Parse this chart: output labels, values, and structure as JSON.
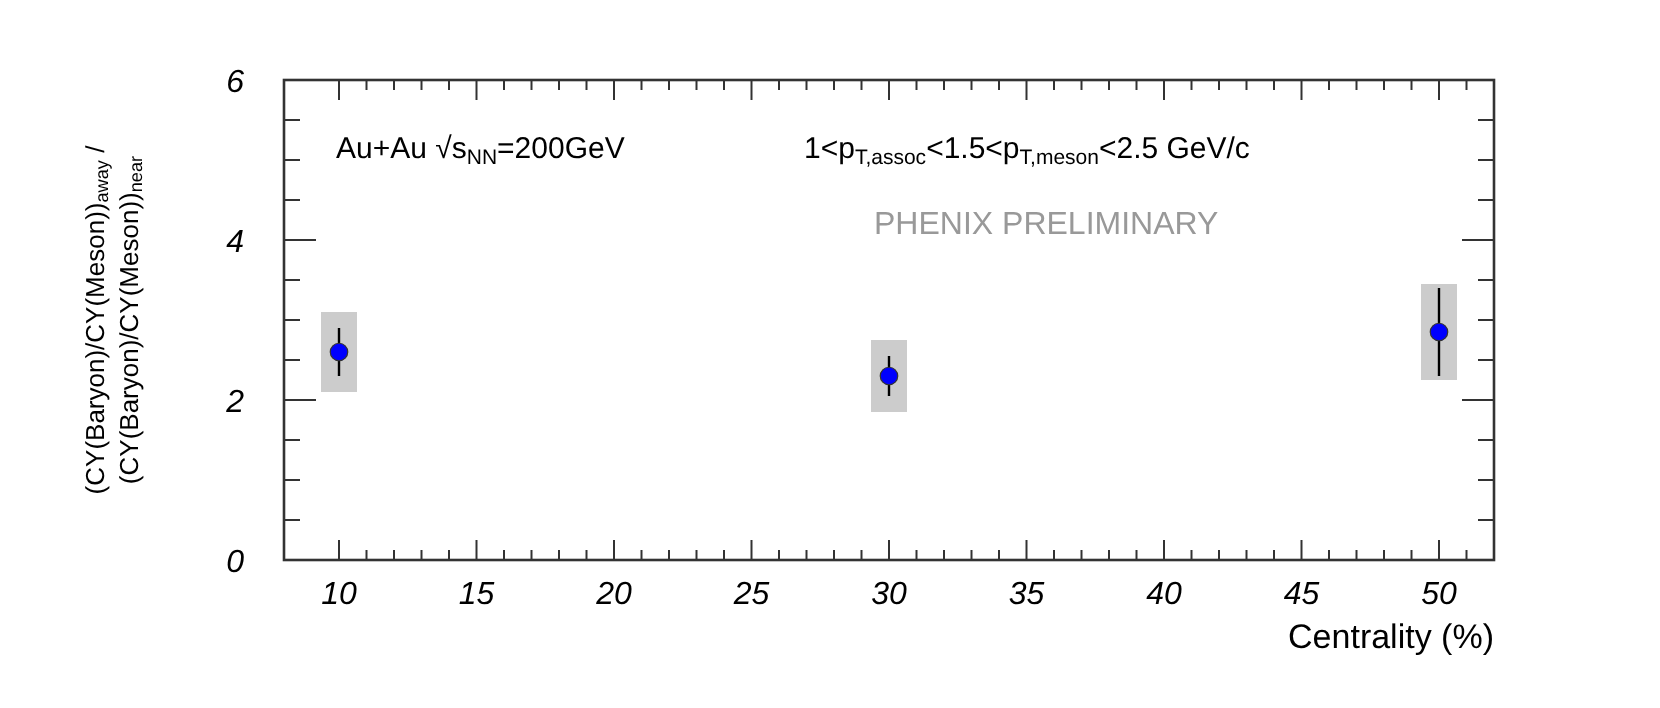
{
  "chart_data": {
    "type": "scatter",
    "xlabel": "Centrality (%)",
    "ylabel": "(CY(Baryon)/CY(Meson))$_{away}$ / (CY(Baryon)/CY(Meson))$_{near}$",
    "xlim": [
      8,
      52
    ],
    "ylim": [
      0,
      6
    ],
    "xticks": [
      10,
      {
        "value": 11,
        "label": null
      },
      {
        "value": 12,
        "label": null
      },
      {
        "value": 13,
        "label": null
      },
      {
        "value": 14,
        "label": null
      },
      15,
      {
        "value": 16,
        "label": null
      },
      {
        "value": 17,
        "label": null
      },
      {
        "value": 18,
        "label": null
      },
      {
        "value": 19,
        "label": null
      },
      20,
      {
        "value": 21,
        "label": null
      },
      {
        "value": 22,
        "label": null
      },
      {
        "value": 23,
        "label": null
      },
      {
        "value": 24,
        "label": null
      },
      25,
      {
        "value": 26,
        "label": null
      },
      {
        "value": 27,
        "label": null
      },
      {
        "value": 28,
        "label": null
      },
      {
        "value": 29,
        "label": null
      },
      30,
      {
        "value": 31,
        "label": null
      },
      {
        "value": 32,
        "label": null
      },
      {
        "value": 33,
        "label": null
      },
      {
        "value": 34,
        "label": null
      },
      35,
      {
        "value": 36,
        "label": null
      },
      {
        "value": 37,
        "label": null
      },
      {
        "value": 38,
        "label": null
      },
      {
        "value": 39,
        "label": null
      },
      40,
      {
        "value": 41,
        "label": null
      },
      {
        "value": 42,
        "label": null
      },
      {
        "value": 43,
        "label": null
      },
      {
        "value": 44,
        "label": null
      },
      45,
      {
        "value": 46,
        "label": null
      },
      {
        "value": 47,
        "label": null
      },
      {
        "value": 48,
        "label": null
      },
      {
        "value": 49,
        "label": null
      },
      50,
      {
        "value": 51,
        "label": null
      }
    ],
    "yticks": [
      0,
      {
        "value": 0.5,
        "label": null
      },
      {
        "value": 1,
        "label": null
      },
      {
        "value": 1.5,
        "label": null
      },
      2,
      {
        "value": 2.5,
        "label": null
      },
      {
        "value": 3,
        "label": null
      },
      {
        "value": 3.5,
        "label": null
      },
      4,
      {
        "value": 4.5,
        "label": null
      },
      {
        "value": 5,
        "label": null
      },
      {
        "value": 5.5,
        "label": null
      },
      6
    ],
    "grid": false,
    "marker": "circle",
    "series": [
      {
        "type": "bar",
        "color": "#cccccc",
        "x": [
          10,
          30,
          50
        ],
        "base": [
          2.1,
          1.85,
          2.25
        ],
        "values": [
          1.0,
          0.9,
          1.2
        ]
      },
      {
        "color": "#0000ff",
        "x": [
          10,
          30,
          50
        ],
        "values": [
          2.6,
          2.3,
          2.85
        ],
        "errors": [
          0.3,
          0.25,
          0.55
        ]
      }
    ],
    "annotations": [
      "Au+Au  √s$_{NN}$=200GeV",
      "1<p$_{T,assoc}$<1.5<p$_{T,meson}$<2.5 GeV/c",
      "PHENIX PRELIMINARY"
    ]
  }
}
